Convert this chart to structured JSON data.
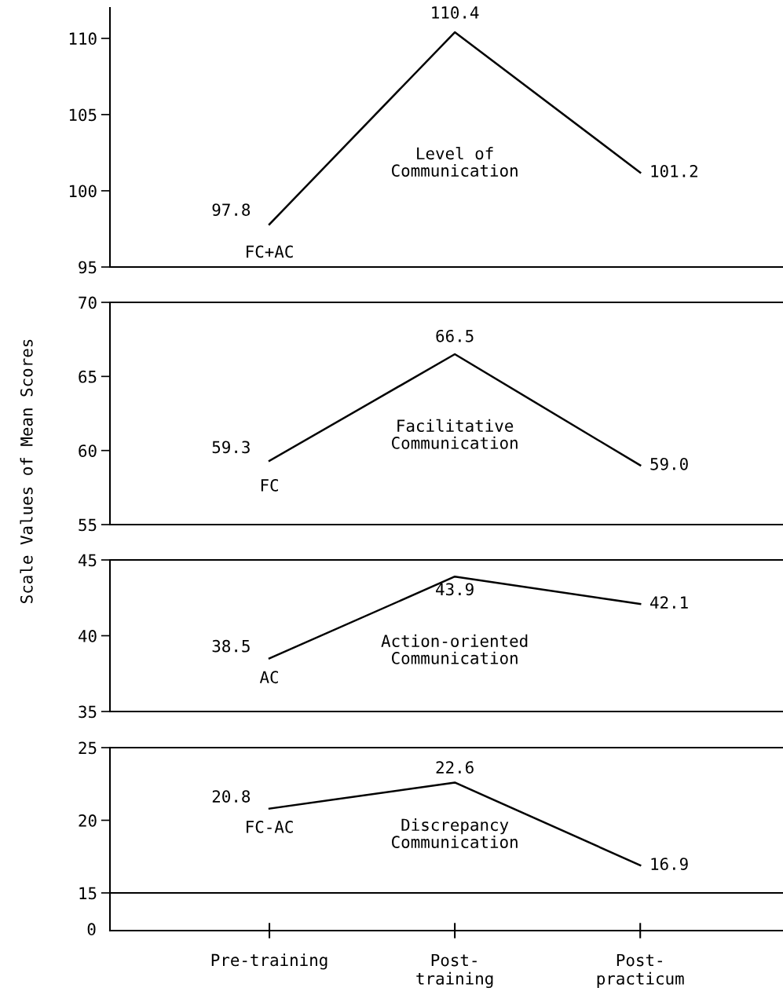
{
  "chart_data": [
    {
      "type": "line",
      "categories": [
        null,
        null,
        null
      ],
      "ylim": [
        95,
        112
      ],
      "yticks": [
        95,
        100,
        105,
        110
      ],
      "tick_labels": "y",
      "data_labels": true,
      "annotations": [
        "Level of\nCommunication"
      ],
      "series": [
        {
          "name": "FC+AC",
          "color": "#000000",
          "values": [
            97.8,
            110.4,
            101.2
          ]
        }
      ]
    },
    {
      "type": "line",
      "categories": [
        null,
        null,
        null
      ],
      "ylim": [
        55,
        70
      ],
      "yticks": [
        55,
        60,
        65,
        70
      ],
      "tick_labels": "y",
      "ylabel": "Scale Values of Mean Scores",
      "annotations": [
        "Facilitative\nCommunication"
      ],
      "series": [
        {
          "name": "FC",
          "color": "#000000",
          "values": [
            59.3,
            66.5,
            59.0
          ],
          "value_labels": [
            "59.3",
            "66.5",
            "59.0"
          ]
        }
      ]
    },
    {
      "type": "line",
      "categories": [
        null,
        null,
        null
      ],
      "ylim": [
        35,
        45
      ],
      "yticks": [
        35,
        40,
        45
      ],
      "tick_labels": "y",
      "data_labels": true,
      "annotations": [
        "Action-oriented\nCommunication"
      ],
      "series": [
        {
          "name": "AC",
          "color": "#000000",
          "values": [
            38.5,
            43.9,
            42.1
          ]
        }
      ]
    },
    {
      "type": "line",
      "categories": [
        null,
        null,
        null
      ],
      "ylim": [
        15,
        25
      ],
      "yticks": [
        15,
        20,
        25
      ],
      "tick_labels": "y",
      "data_labels": true,
      "annotations": [
        "Discrepancy\nCommunication"
      ],
      "series": [
        {
          "name": "FC-AC",
          "color": "#000000",
          "values": [
            20.8,
            22.6,
            16.9
          ]
        }
      ]
    },
    {
      "type": "other",
      "categories": [
        "Pre-training",
        "Post-\ntraining",
        "Post-\npracticum"
      ],
      "annotations": [
        "0"
      ]
    }
  ]
}
